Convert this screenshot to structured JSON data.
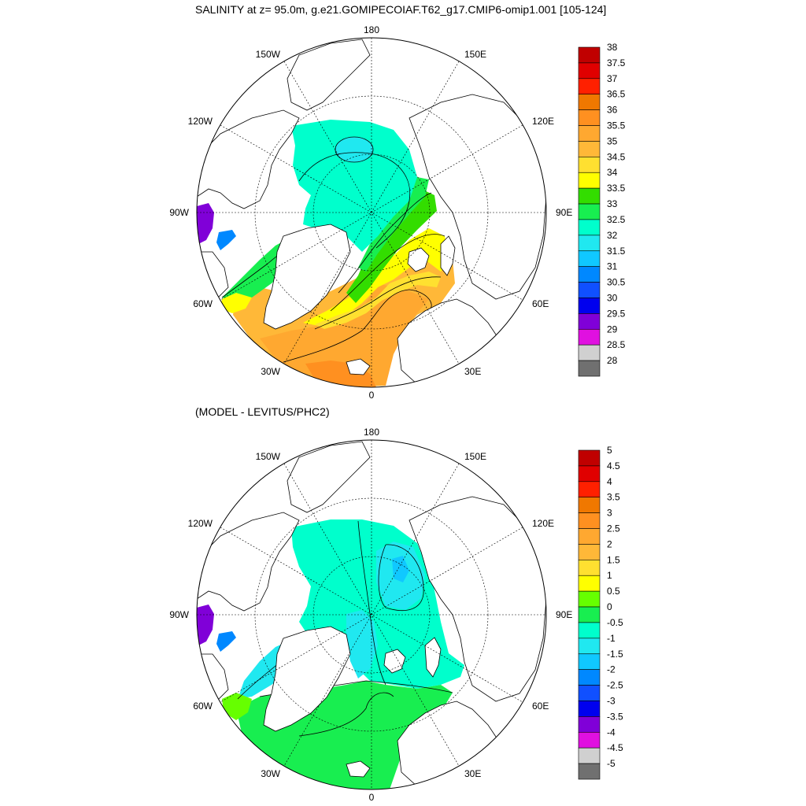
{
  "titles": {
    "top": "SALINITY at z=  95.0m, g.e21.GOMIPECOIAF.T62_g17.CMIP6-omip1.001 [105-124]",
    "bottom": "(MODEL - LEVITUS/PHC2)"
  },
  "lon_labels": [
    "180",
    "150E",
    "120E",
    "90E",
    "60E",
    "30E",
    "0",
    "30W",
    "60W",
    "90W",
    "120W",
    "150W"
  ],
  "colorbars": [
    {
      "name": "salinity",
      "labels": [
        "38",
        "37.5",
        "37",
        "36.5",
        "36",
        "35.5",
        "35",
        "34.5",
        "34",
        "33.5",
        "33",
        "32.5",
        "32",
        "31.5",
        "31",
        "30.5",
        "30",
        "29.5",
        "29",
        "28.5",
        "28"
      ],
      "colors": [
        "#c00000",
        "#e00000",
        "#ff2000",
        "#f07800",
        "#ff9020",
        "#ffa830",
        "#ffb838",
        "#ffe030",
        "#ffff00",
        "#33dd00",
        "#18ee50",
        "#00ffcc",
        "#20e8f0",
        "#10c8ff",
        "#0088ff",
        "#1050ff",
        "#0000ee",
        "#8000d8",
        "#e010e0",
        "#d0d0d0",
        "#707070"
      ]
    },
    {
      "name": "difference",
      "labels": [
        "5",
        "4.5",
        "4",
        "3.5",
        "3",
        "2.5",
        "2",
        "1.5",
        "1",
        "0.5",
        "0",
        "-0.5",
        "-1",
        "-1.5",
        "-2",
        "-2.5",
        "-3",
        "-3.5",
        "-4",
        "-4.5",
        "-5"
      ],
      "colors": [
        "#c00000",
        "#e00000",
        "#ff2000",
        "#f07800",
        "#ff9020",
        "#ffa830",
        "#ffb838",
        "#ffe030",
        "#ffff00",
        "#66ff00",
        "#18ee50",
        "#00ffcc",
        "#20e8f0",
        "#10c8ff",
        "#0088ff",
        "#1050ff",
        "#0000ee",
        "#8000d8",
        "#e010e0",
        "#d0d0d0",
        "#707070"
      ]
    }
  ],
  "colors": {
    "land": "#ffffff",
    "coast": "#000000",
    "top_regions": {
      "central_arctic": "#00ffcc",
      "central_core": "#20e8f0",
      "ring_33": "#18ee50",
      "ring_335": "#33dd00",
      "ring_34": "#ffff00",
      "ring_345": "#ffe030",
      "atlantic_35": "#ffb838",
      "atlantic_355": "#ffa830",
      "atlantic_36": "#ff9020",
      "hudson": "#8000d8",
      "archipelago": "#0088ff"
    },
    "bottom_regions": {
      "central": "#00ffcc",
      "low": "#20e8f0",
      "lower": "#10c8ff",
      "atlantic": "#18ee50",
      "green": "#66ff00",
      "hudson": "#8000d8",
      "archipelago": "#0088ff"
    }
  }
}
